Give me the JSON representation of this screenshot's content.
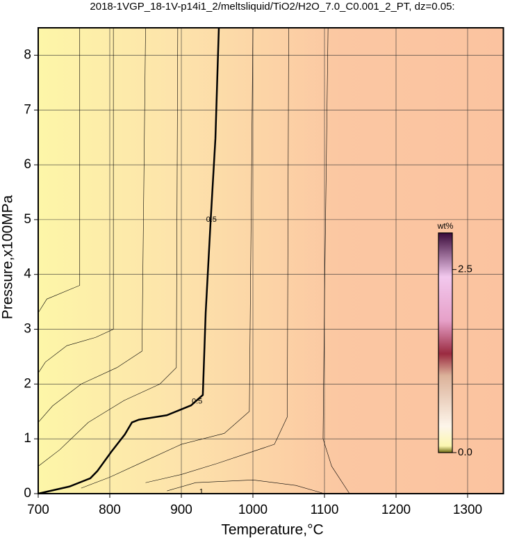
{
  "chart_data": {
    "type": "contour",
    "title": "2018-1VGP_18-1V-p14i1_2/meltsliquid/TiO2/H2O_7.0_C0.001_2_PT, dz=0.05:",
    "x_label": "Temperature,°C",
    "y_label": "Pressure,x100MPa",
    "xlim": [
      700,
      1350
    ],
    "ylim": [
      0,
      8.5
    ],
    "xticks": [
      700,
      800,
      900,
      1000,
      1100,
      1200,
      1300
    ],
    "yticks": [
      0,
      1,
      2,
      3,
      4,
      5,
      6,
      7,
      8
    ],
    "grid": true,
    "colorbar": {
      "label": "wt%",
      "lim": [
        0,
        3.0
      ],
      "ticks": [
        {
          "value": 0,
          "label": "0.0"
        },
        2.5
      ]
    },
    "contours": [
      {
        "x": [
          700,
          743.7,
          772.8,
          782.5,
          801.9,
          821,
          831,
          840.8,
          879.6,
          913.6,
          930,
          934,
          940.8,
          947.6,
          952.4
        ],
        "y": [
          0,
          0.13,
          0.28,
          0.41,
          0.76,
          1.08,
          1.3,
          1.35,
          1.43,
          1.61,
          1.8,
          3.3,
          4.95,
          6.48,
          8.5
        ],
        "bold": true
      },
      {
        "x": [
          758,
          758,
          712,
          700
        ],
        "y": [
          8.5,
          3.8,
          3.55,
          3.3
        ]
      },
      {
        "x": [
          805,
          805,
          780,
          740,
          710,
          700
        ],
        "y": [
          8.5,
          3.0,
          2.85,
          2.7,
          2.4,
          2.2
        ]
      },
      {
        "x": [
          850,
          845,
          810,
          760,
          720,
          700
        ],
        "y": [
          8.5,
          2.6,
          2.3,
          2.0,
          1.6,
          1.3
        ]
      },
      {
        "x": [
          895,
          893,
          870,
          820,
          770,
          730,
          700
        ],
        "y": [
          8.5,
          2.3,
          2.0,
          1.7,
          1.3,
          0.8,
          0.5
        ]
      },
      {
        "x": [
          1000,
          995,
          960,
          900,
          850,
          800,
          760
        ],
        "y": [
          8.5,
          1.5,
          1.1,
          0.9,
          0.6,
          0.3,
          0.1
        ]
      },
      {
        "x": [
          1050,
          1048,
          1030,
          950,
          900,
          850
        ],
        "y": [
          8.5,
          1.4,
          0.9,
          0.55,
          0.35,
          0.2
        ]
      },
      {
        "x": [
          1105,
          1100,
          1098,
          1110,
          1135
        ],
        "y": [
          8.5,
          3.5,
          1.0,
          0.5,
          0
        ]
      },
      {
        "x": [
          880,
          920,
          1000,
          1060,
          1100
        ],
        "y": [
          0.05,
          0.2,
          0.25,
          0.15,
          0
        ]
      }
    ],
    "contour_labels": [
      {
        "text": 0.5,
        "x": 922,
        "y": 1.68
      },
      {
        "text": 0.5,
        "x": 942,
        "y": 5.0
      },
      {
        "text": 1,
        "x": 928,
        "y": 0.03
      }
    ]
  }
}
